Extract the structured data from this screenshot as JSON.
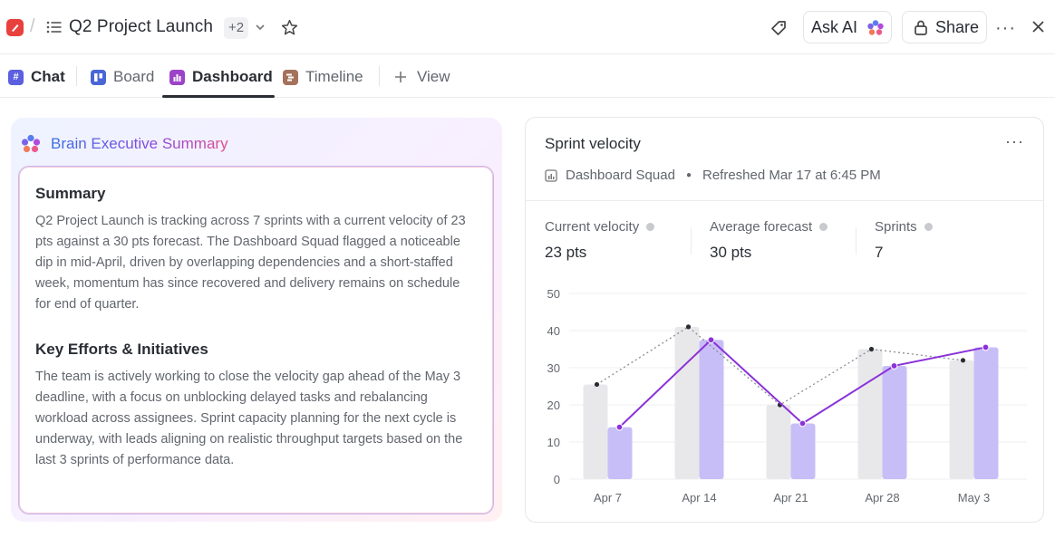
{
  "header": {
    "title": "Q2 Project Launch",
    "extra_count": "+2",
    "ask_ai_label": "Ask AI",
    "share_label": "Share",
    "more_label": "···",
    "brand_color": "#e8413d"
  },
  "tabs": [
    {
      "label": "Chat",
      "icon": "hash-icon",
      "color": "#5b5fe0",
      "active": false
    },
    {
      "label": "Board",
      "icon": "board-icon",
      "color": "#4a66d6",
      "active": false
    },
    {
      "label": "Dashboard",
      "icon": "dashboard-icon",
      "color": "#9c44c9",
      "active": true
    },
    {
      "label": "Timeline",
      "icon": "timeline-icon",
      "color": "#a4715c",
      "active": false
    },
    {
      "label": "View",
      "icon": "plus-icon",
      "color": "#62666d",
      "active": false
    }
  ],
  "brain": {
    "title": "Brain Executive Summary",
    "summary_heading": "Summary",
    "summary_text": "Q2 Project Launch is tracking across 7 sprints with a current velocity of 23 pts against a 30 pts forecast. The Dashboard Squad flagged a noticeable dip in mid-April, driven by overlapping dependencies and a short-staffed week, momentum has since recovered and delivery remains on schedule for end of quarter.",
    "efforts_heading": "Key Efforts & Initiatives",
    "efforts_text": "The team is actively working to close the velocity gap ahead of the May 3 deadline, with a focus on unblocking delayed tasks and rebalancing workload across assignees. Sprint capacity planning for the next cycle is underway, with leads aligning on realistic throughput targets based on the last 3 sprints of performance data."
  },
  "velocity": {
    "title": "Sprint velocity",
    "more_label": "···",
    "squad": "Dashboard Squad",
    "refreshed": "Refreshed Mar 17 at 6:45 PM",
    "stats": [
      {
        "label": "Current velocity",
        "value": "23 pts"
      },
      {
        "label": "Average forecast",
        "value": "30 pts"
      },
      {
        "label": "Sprints",
        "value": "7"
      }
    ]
  },
  "chart_data": {
    "type": "bar",
    "categories": [
      "Apr 7",
      "Apr 14",
      "Apr 21",
      "Apr 28",
      "May 3"
    ],
    "y_ticks": [
      "0",
      "10",
      "20",
      "30",
      "40",
      "50"
    ],
    "ylim": [
      0,
      50
    ],
    "grid": true,
    "series": [
      {
        "values": [
          25.5,
          41,
          20,
          35,
          32
        ],
        "bar_color": "#e8e8eb",
        "line": "dotted",
        "line_color": "#8a8d93",
        "point_color": "#2a2e34"
      },
      {
        "values": [
          14,
          37.5,
          15,
          30.5,
          35.5
        ],
        "bar_color": "#c8bef7",
        "line": "solid",
        "line_color": "#8a32d8",
        "point_color": "#8a32d8"
      }
    ]
  }
}
